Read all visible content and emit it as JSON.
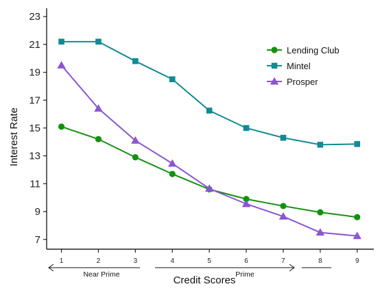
{
  "chart_data": {
    "type": "line",
    "x": [
      1,
      2,
      3,
      4,
      5,
      6,
      7,
      8,
      9
    ],
    "series": [
      {
        "name": "Lending Club",
        "color": "#14910f",
        "marker": "circle",
        "values": [
          15.1,
          14.2,
          12.9,
          11.7,
          10.6,
          9.9,
          9.4,
          8.95,
          8.6
        ]
      },
      {
        "name": "Mintel",
        "color": "#118a93",
        "marker": "square",
        "values": [
          21.2,
          21.2,
          19.8,
          18.5,
          16.25,
          15.0,
          14.3,
          13.8,
          13.85
        ]
      },
      {
        "name": "Prosper",
        "color": "#8956d4",
        "marker": "triangle",
        "values": [
          19.5,
          16.4,
          14.1,
          12.45,
          10.65,
          9.55,
          8.65,
          7.5,
          7.25
        ]
      }
    ],
    "xlabel": "Credit Scores",
    "ylabel": "Interest Rate",
    "xticks": [
      "1",
      "2",
      "3",
      "4",
      "5",
      "6",
      "7",
      "8",
      "9"
    ],
    "yticks": [
      "7",
      "9",
      "11",
      "13",
      "15",
      "17",
      "19",
      "21",
      "23"
    ],
    "ylim": [
      6.3,
      23.6
    ],
    "xlim": [
      0.6,
      9.45
    ],
    "legend_position": "top-right",
    "grid": false,
    "range_annotations": {
      "near_prime": "Near Prime",
      "prime": "Prime"
    }
  }
}
